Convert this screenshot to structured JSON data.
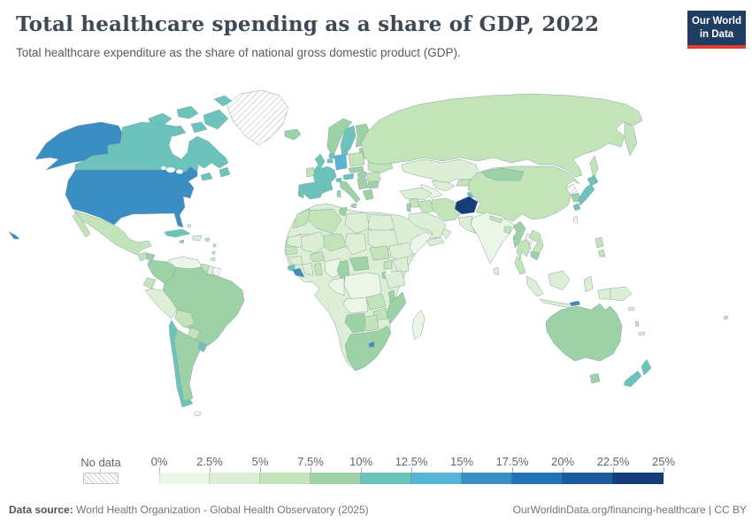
{
  "header": {
    "title": "Total healthcare spending as a share of GDP, 2022",
    "subtitle": "Total healthcare expenditure as the share of national gross domestic product (GDP).",
    "logo_line1": "Our World",
    "logo_line2": "in Data",
    "logo_bg": "#1d3d63",
    "logo_accent": "#e23d32"
  },
  "legend": {
    "no_data_label": "No data",
    "tick_labels": [
      "0%",
      "2.5%",
      "5%",
      "7.5%",
      "10%",
      "12.5%",
      "15%",
      "17.5%",
      "20%",
      "22.5%",
      "25%"
    ]
  },
  "footer": {
    "datasource_label": "Data source:",
    "datasource_text": " World Health Organization - Global Health Observatory (2025)",
    "link_text": "OurWorldinData.org/financing-healthcare | CC BY"
  },
  "chart_data": {
    "type": "heatmap",
    "subtype": "choropleth-world-map",
    "title": "Total healthcare spending as a share of GDP, 2022",
    "unit": "% of GDP",
    "year": "2022",
    "legend_range": [
      "0%",
      "25%"
    ],
    "bins": [
      {
        "range": "0-2.5%",
        "color": "#ecf6e7"
      },
      {
        "range": "2.5-5%",
        "color": "#dcefd5"
      },
      {
        "range": "5-7.5%",
        "color": "#c3e4b9"
      },
      {
        "range": "7.5-10%",
        "color": "#9cd2a6"
      },
      {
        "range": "10-12.5%",
        "color": "#6cc3bc"
      },
      {
        "range": "12.5-15%",
        "color": "#57b4d4"
      },
      {
        "range": "15-17.5%",
        "color": "#3a8ec4"
      },
      {
        "range": "17.5-20%",
        "color": "#2273b6"
      },
      {
        "range": "20-22.5%",
        "color": "#1b5a9c"
      },
      {
        "range": "22.5-25%",
        "color": "#153d79"
      }
    ],
    "bin_colors": [
      "#ecf6e7",
      "#dcefd5",
      "#c3e4b9",
      "#9cd2a6",
      "#6cc3bc",
      "#57b4d4",
      "#3a8ec4",
      "#2273b6",
      "#1b5a9c",
      "#153d79"
    ],
    "no_data": {
      "label": "No data",
      "fill": "hatch",
      "countries": [
        "greenland",
        "north-korea",
        "taiwan",
        "french-guiana",
        "falklands"
      ]
    },
    "country_bins": {
      "usa": 7,
      "canada": 5,
      "greenland": 0,
      "mexico": 3,
      "guatemala": 3,
      "honduras": 4,
      "nicaragua": 4,
      "costa-rica": 4,
      "panama": 3,
      "cuba": 5,
      "hispaniola": 2,
      "jamaica": 4,
      "puerto-rico": 3,
      "bahamas": 2,
      "lesser-antilles": 3,
      "trinidad": 2,
      "venezuela": 1,
      "colombia": 4,
      "guyana": 3,
      "suriname": 2,
      "french-guiana": 0,
      "ecuador": 3,
      "peru": 2,
      "brazil": 4,
      "bolivia": 3,
      "paraguay": 3,
      "chile": 5,
      "argentina": 4,
      "uruguay": 5,
      "falklands": 0,
      "iceland": 4,
      "norway": 4,
      "sweden": 5,
      "finland": 4,
      "denmark": 5,
      "baltics": 4,
      "uk": 5,
      "ireland": 3,
      "netherlands": 5,
      "belgium": 5,
      "germany": 6,
      "poland": 3,
      "belarus": 3,
      "ukraine": 3,
      "france": 5,
      "switzerland": 5,
      "austria": 5,
      "czechia-slovakia": 4,
      "hungary": 4,
      "romania": 3,
      "balkans": 4,
      "bulgaria": 4,
      "greece": 4,
      "italy": 4,
      "spain": 5,
      "portugal": 5,
      "russia": 3,
      "kazakhstan": 2,
      "uzbekistan": 2,
      "turkmenistan": 1,
      "kyrgyzstan": 3,
      "tajikistan": 5,
      "caucasus": 3,
      "turkey": 2,
      "syria": 3,
      "levant": 4,
      "iraq": 3,
      "saudi-arabia": 2,
      "yemen": 2,
      "oman": 2,
      "iran": 3,
      "afghanistan": 10,
      "pakistan": 2,
      "india": 1,
      "sri-lanka": 2,
      "nepal": 3,
      "bangladesh": 3,
      "myanmar": 4,
      "china": 3,
      "mongolia": 4,
      "north-korea": 0,
      "south-korea": 4,
      "japan": 5,
      "taiwan": 0,
      "thailand": 3,
      "laos": 1,
      "vietnam": 3,
      "cambodia": 4,
      "malaysia": 3,
      "indonesia": 2,
      "timor-leste": 7,
      "philippines": 3,
      "papua-new-guinea": 2,
      "australia": 4,
      "new-zealand": 5,
      "fiji": 3,
      "vanuatu": 3,
      "new-caledonia": 2,
      "solomon": 2,
      "africa-base": 2,
      "morocco": 3,
      "western-sahara": 1,
      "algeria": 3,
      "tunisia": 4,
      "libya": 2,
      "egypt": 2,
      "mauritania": 2,
      "mali": 2,
      "niger": 3,
      "chad": 2,
      "sudan": 2,
      "ethiopia": 2,
      "somalia": 1,
      "senegal": 3,
      "guinea": 2,
      "sierra-leone": 5,
      "liberia": 7,
      "ivory-coast": 2,
      "ghana": 3,
      "burkina-faso": 3,
      "nigeria": 1,
      "cameroon": 4,
      "central-african-republic": 4,
      "south-sudan": 3,
      "kenya": 2,
      "uganda": 3,
      "drc": 1,
      "congo-gabon": 1,
      "rwanda-burundi": 4,
      "tanzania": 2,
      "angola": 1,
      "zambia": 3,
      "malawi": 4,
      "mozambique": 4,
      "zimbabwe": 3,
      "namibia": 4,
      "botswana": 3,
      "south-africa": 4,
      "lesotho": 7,
      "madagascar": 1
    },
    "map_border_color": "#8ba1a7",
    "no_data_border_color": "#c2c9cd"
  }
}
